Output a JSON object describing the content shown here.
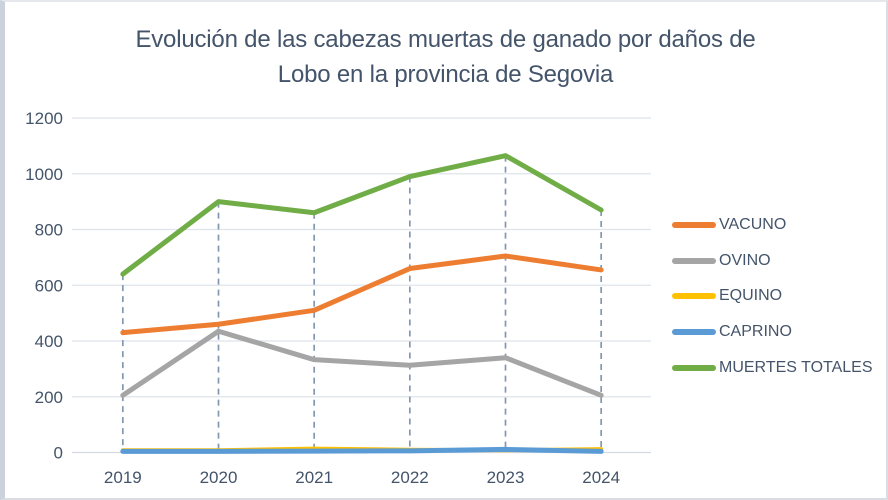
{
  "title_lines": [
    "Evolución de las cabezas muertas de ganado por daños de",
    "Lobo en la provincia de Segovia"
  ],
  "colors": {
    "title_text": "#44546a",
    "axis_text": "#44546a",
    "gridline": "#dee4eb",
    "axis_line": "#d3dae1",
    "drop_line": "#8497b0",
    "frame_border": "#dadde2"
  },
  "chart_data": {
    "type": "line",
    "title": "Evolución de las cabezas muertas de ganado por daños de Lobo en la provincia de Segovia",
    "categories": [
      "2019",
      "2020",
      "2021",
      "2022",
      "2023",
      "2024"
    ],
    "series": [
      {
        "name": "VACUNO",
        "color": "#ED7D31",
        "stroke_width": 5,
        "values": [
          430,
          460,
          510,
          660,
          705,
          655
        ]
      },
      {
        "name": "OVINO",
        "color": "#A5A5A5",
        "stroke_width": 5,
        "values": [
          205,
          435,
          333,
          313,
          340,
          205
        ]
      },
      {
        "name": "EQUINO",
        "color": "#FFC000",
        "stroke_width": 4,
        "values": [
          8,
          8,
          14,
          10,
          8,
          12
        ]
      },
      {
        "name": "CAPRINO",
        "color": "#5B9BD5",
        "stroke_width": 5,
        "values": [
          4,
          4,
          5,
          6,
          11,
          4
        ]
      },
      {
        "name": "MUERTES TOTALES",
        "color": "#70AD47",
        "stroke_width": 5,
        "values": [
          640,
          900,
          860,
          990,
          1065,
          870
        ]
      }
    ],
    "xlabel": "",
    "ylabel": "",
    "ylim": [
      0,
      1200
    ],
    "yticks": [
      0,
      200,
      400,
      600,
      800,
      1000,
      1200
    ],
    "grid": "horizontal",
    "legend_position": "right",
    "drop_lines": "dashed vertical from MUERTES TOTALES point to x-axis at each category"
  }
}
